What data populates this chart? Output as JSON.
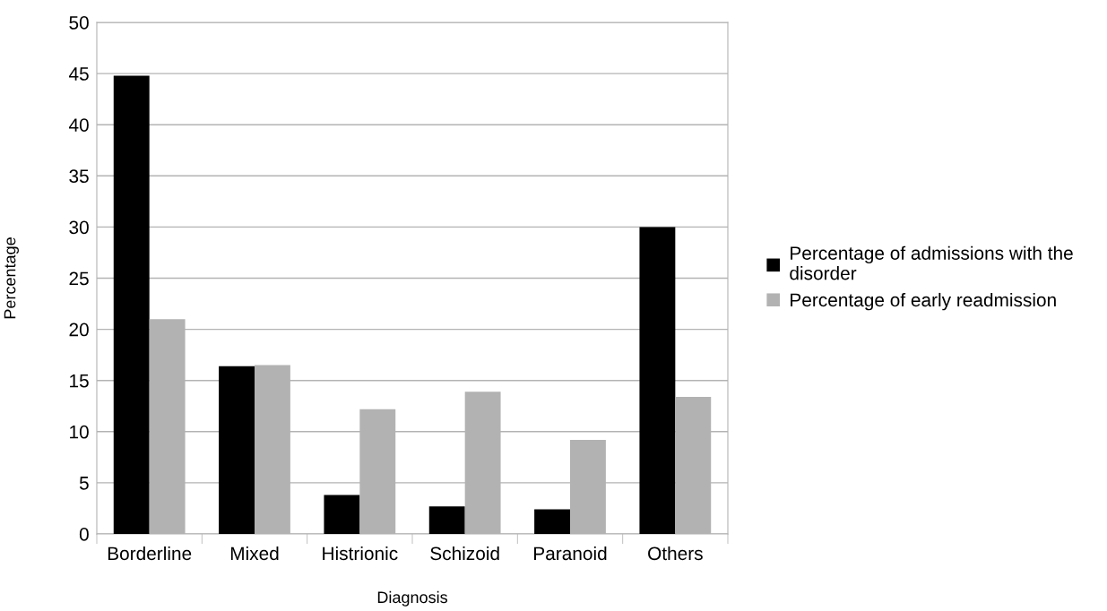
{
  "chart_data": {
    "type": "bar",
    "xlabel": "Diagnosis",
    "ylabel": "Percentage",
    "categories": [
      "Borderline",
      "Mixed",
      "Histrionic",
      "Schizoid",
      "Paranoid",
      "Others"
    ],
    "series": [
      {
        "name": "Percentage of admissions with the disorder",
        "color": "#000000",
        "values": [
          44.8,
          16.4,
          3.8,
          2.7,
          2.4,
          30.0
        ]
      },
      {
        "name": "Percentage of early readmission",
        "color": "#b2b2b2",
        "values": [
          21.0,
          16.5,
          12.2,
          13.9,
          9.2,
          13.4
        ]
      }
    ],
    "ylim": [
      0,
      50
    ],
    "yticks": [
      0,
      5,
      10,
      15,
      20,
      25,
      30,
      35,
      40,
      45,
      50
    ],
    "grid": "y",
    "legend": "right"
  }
}
